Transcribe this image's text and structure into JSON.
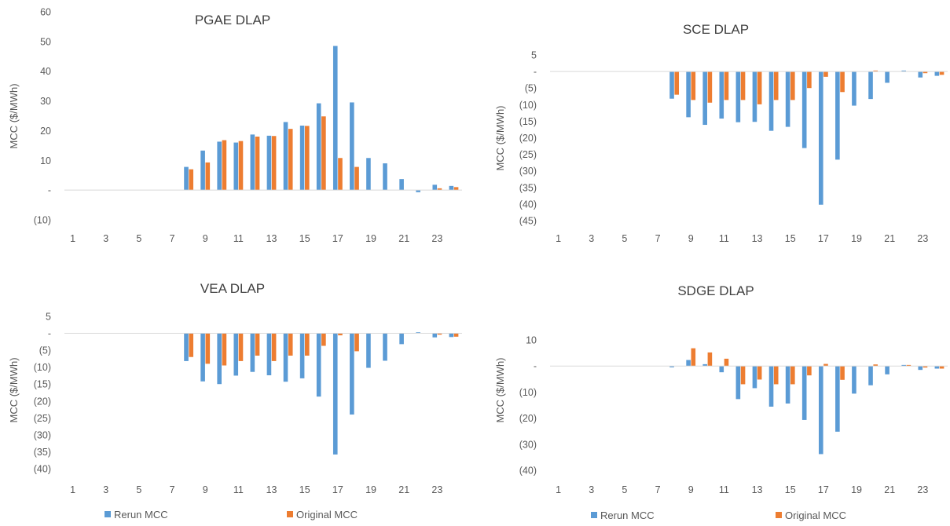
{
  "colors": {
    "rerun": "#5b9bd5",
    "original": "#ed7d31",
    "axis": "#d9d9d9"
  },
  "legend": [
    {
      "labels": [
        "Rerun MCC",
        "Original MCC"
      ]
    },
    {
      "labels": [
        "Rerun MCC",
        "Original MCC"
      ]
    }
  ],
  "chart_data": [
    {
      "type": "bar",
      "title": "PGAE DLAP",
      "ylabel": "MCC ($/MWh)",
      "xlabel": "",
      "ylim": [
        -10,
        60
      ],
      "yticks": [
        60,
        50,
        40,
        30,
        20,
        10,
        0,
        -10
      ],
      "ytick_labels": [
        "60",
        "50",
        "40",
        "30",
        "20",
        "10",
        "-",
        "(10)"
      ],
      "categories": [
        1,
        2,
        3,
        4,
        5,
        6,
        7,
        8,
        9,
        10,
        11,
        12,
        13,
        14,
        15,
        16,
        17,
        18,
        19,
        20,
        21,
        22,
        23,
        24
      ],
      "xtick_labels": [
        "1",
        "3",
        "5",
        "7",
        "9",
        "11",
        "13",
        "15",
        "17",
        "19",
        "21",
        "23"
      ],
      "grid": false,
      "legend_position": "bottom",
      "series": [
        {
          "name": "Rerun MCC",
          "values": [
            0,
            0,
            0,
            0,
            0,
            0,
            0,
            7.8,
            13.3,
            16.3,
            16.0,
            18.7,
            18.3,
            22.9,
            21.7,
            29.2,
            48.5,
            29.5,
            10.8,
            9.0,
            3.7,
            -0.7,
            1.8,
            1.4
          ]
        },
        {
          "name": "Original MCC",
          "values": [
            0,
            0,
            0,
            0,
            0,
            0,
            0,
            7.0,
            9.3,
            16.8,
            16.5,
            18.0,
            18.2,
            20.6,
            21.6,
            24.8,
            10.8,
            7.8,
            0,
            0,
            0,
            0,
            0.6,
            1.0
          ]
        }
      ]
    },
    {
      "type": "bar",
      "title": "SCE DLAP",
      "ylabel": "MCC ($/MWh)",
      "xlabel": "",
      "ylim": [
        -45,
        5
      ],
      "yticks": [
        5,
        0,
        -5,
        -10,
        -15,
        -20,
        -25,
        -30,
        -35,
        -40,
        -45
      ],
      "ytick_labels": [
        "5",
        "-",
        "(5)",
        "(10)",
        "(15)",
        "(20)",
        "(25)",
        "(30)",
        "(35)",
        "(40)",
        "(45)"
      ],
      "categories": [
        1,
        2,
        3,
        4,
        5,
        6,
        7,
        8,
        9,
        10,
        11,
        12,
        13,
        14,
        15,
        16,
        17,
        18,
        19,
        20,
        21,
        22,
        23,
        24
      ],
      "xtick_labels": [
        "1",
        "3",
        "5",
        "7",
        "9",
        "11",
        "13",
        "15",
        "17",
        "19",
        "21",
        "23"
      ],
      "grid": false,
      "legend_position": "bottom",
      "series": [
        {
          "name": "Rerun MCC",
          "values": [
            0,
            0,
            0,
            0,
            0,
            0,
            0,
            -8.2,
            -13.8,
            -16.1,
            -14.2,
            -15.3,
            -15.2,
            -17.9,
            -16.7,
            -23.1,
            -40.2,
            -26.6,
            -10.3,
            -8.3,
            -3.4,
            0.3,
            -1.8,
            -1.3
          ]
        },
        {
          "name": "Original MCC",
          "values": [
            0,
            0,
            0,
            0,
            0,
            0,
            0,
            -7.0,
            -8.6,
            -9.4,
            -8.6,
            -8.6,
            -9.9,
            -8.6,
            -8.6,
            -5.0,
            -1.6,
            -6.2,
            0,
            0.3,
            0,
            0,
            -0.5,
            -1.0
          ]
        }
      ]
    },
    {
      "type": "bar",
      "title": "VEA DLAP",
      "ylabel": "MCC ($/MWh)",
      "xlabel": "",
      "ylim": [
        -40,
        5
      ],
      "yticks": [
        5,
        0,
        -5,
        -10,
        -15,
        -20,
        -25,
        -30,
        -35,
        -40
      ],
      "ytick_labels": [
        "5",
        "-",
        "(5)",
        "(10)",
        "(15)",
        "(20)",
        "(25)",
        "(30)",
        "(35)",
        "(40)"
      ],
      "categories": [
        1,
        2,
        3,
        4,
        5,
        6,
        7,
        8,
        9,
        10,
        11,
        12,
        13,
        14,
        15,
        16,
        17,
        18,
        19,
        20,
        21,
        22,
        23,
        24
      ],
      "xtick_labels": [
        "1",
        "3",
        "5",
        "7",
        "9",
        "11",
        "13",
        "15",
        "17",
        "19",
        "21",
        "23"
      ],
      "grid": false,
      "legend_position": "bottom",
      "series": [
        {
          "name": "Rerun MCC",
          "values": [
            0,
            0,
            0,
            0,
            0,
            0,
            0,
            -8.2,
            -14.2,
            -15.0,
            -12.5,
            -11.4,
            -12.4,
            -14.3,
            -13.3,
            -18.7,
            -35.8,
            -24.0,
            -10.2,
            -8.1,
            -3.2,
            0.3,
            -1.2,
            -1.1
          ]
        },
        {
          "name": "Original MCC",
          "values": [
            0,
            0,
            0,
            0,
            0,
            0,
            0,
            -7.0,
            -9.0,
            -9.5,
            -8.2,
            -6.6,
            -8.2,
            -6.6,
            -6.6,
            -3.7,
            -0.6,
            -5.3,
            0,
            0,
            0,
            0,
            -0.4,
            -1.0
          ]
        }
      ]
    },
    {
      "type": "bar",
      "title": "SDGE DLAP",
      "ylabel": "MCC ($/MWh)",
      "xlabel": "",
      "ylim": [
        -40,
        10
      ],
      "yticks": [
        10,
        0,
        -10,
        -20,
        -30,
        -40
      ],
      "ytick_labels": [
        "10",
        "-",
        "(10)",
        "(20)",
        "(30)",
        "(40)"
      ],
      "categories": [
        1,
        2,
        3,
        4,
        5,
        6,
        7,
        8,
        9,
        10,
        11,
        12,
        13,
        14,
        15,
        16,
        17,
        18,
        19,
        20,
        21,
        22,
        23,
        24
      ],
      "xtick_labels": [
        "1",
        "3",
        "5",
        "7",
        "9",
        "11",
        "13",
        "15",
        "17",
        "19",
        "21",
        "23"
      ],
      "grid": false,
      "legend_position": "bottom",
      "series": [
        {
          "name": "Rerun MCC",
          "values": [
            0,
            0,
            0,
            0,
            0,
            0,
            0,
            -0.5,
            2.3,
            0.7,
            -2.4,
            -12.7,
            -8.5,
            -15.6,
            -14.4,
            -20.7,
            -33.8,
            -25.2,
            -10.6,
            -7.4,
            -3.2,
            0.4,
            -1.5,
            -1.0
          ]
        },
        {
          "name": "Original MCC",
          "values": [
            0,
            0,
            0,
            0,
            0,
            0,
            0,
            0,
            6.8,
            5.2,
            2.8,
            -7.0,
            -5.2,
            -7.0,
            -7.0,
            -3.6,
            0.8,
            -5.3,
            0,
            0.6,
            0,
            0.4,
            -0.6,
            -1.0
          ]
        }
      ]
    }
  ]
}
